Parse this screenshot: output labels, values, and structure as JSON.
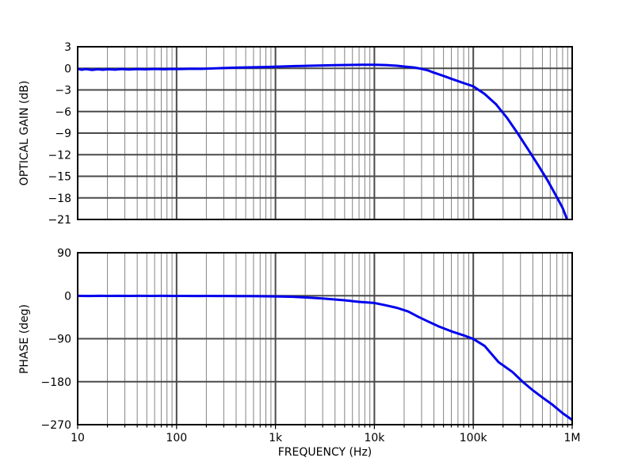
{
  "figure": {
    "background": "#ffffff"
  },
  "colors": {
    "curve": "#0000ee",
    "grid_major": "#4a4a4a",
    "grid_minor": "#848484",
    "frame": "#000000",
    "text": "#000000"
  },
  "chart_data": [
    {
      "type": "line",
      "name": "optical-gain",
      "ylabel": "OPTICAL GAIN (dB)",
      "xlabel": "",
      "xscale": "log",
      "xlim": [
        10,
        1000000
      ],
      "ylim": [
        -21,
        3
      ],
      "yticks": [
        3,
        0,
        -3,
        -6,
        -9,
        -12,
        -15,
        -18,
        -21
      ],
      "ytick_labels": [
        "3",
        "0",
        "−3",
        "−6",
        "−9",
        "−12",
        "−15",
        "−18",
        "−21"
      ],
      "xticks": [
        10,
        100,
        1000,
        10000,
        100000,
        1000000
      ],
      "xtick_labels": [],
      "grid": {
        "major": true,
        "minor_x": true,
        "legend": "none"
      },
      "series": [
        {
          "name": "optical-gain-response",
          "color": "#0000ee",
          "linewidth": 3,
          "points": [
            [
              10,
              -0.07
            ],
            [
              11,
              -0.2
            ],
            [
              12,
              -0.1
            ],
            [
              14,
              -0.22
            ],
            [
              16,
              -0.12
            ],
            [
              18,
              -0.2
            ],
            [
              20,
              -0.12
            ],
            [
              24,
              -0.18
            ],
            [
              28,
              -0.1
            ],
            [
              33,
              -0.16
            ],
            [
              40,
              -0.1
            ],
            [
              48,
              -0.14
            ],
            [
              60,
              -0.08
            ],
            [
              75,
              -0.12
            ],
            [
              90,
              -0.08
            ],
            [
              110,
              -0.1
            ],
            [
              140,
              -0.05
            ],
            [
              180,
              -0.07
            ],
            [
              230,
              -0.02
            ],
            [
              300,
              0.04
            ],
            [
              400,
              0.09
            ],
            [
              550,
              0.14
            ],
            [
              700,
              0.17
            ],
            [
              900,
              0.21
            ],
            [
              1200,
              0.26
            ],
            [
              1600,
              0.31
            ],
            [
              2200,
              0.36
            ],
            [
              3000,
              0.4
            ],
            [
              4000,
              0.44
            ],
            [
              5500,
              0.47
            ],
            [
              7500,
              0.5
            ],
            [
              10000,
              0.5
            ],
            [
              13000,
              0.46
            ],
            [
              17000,
              0.36
            ],
            [
              20000,
              0.25
            ],
            [
              25000,
              0.12
            ],
            [
              30000,
              -0.07
            ],
            [
              35000,
              -0.3
            ],
            [
              40000,
              -0.6
            ],
            [
              50000,
              -1.05
            ],
            [
              60000,
              -1.45
            ],
            [
              80000,
              -2.05
            ],
            [
              100000,
              -2.5
            ],
            [
              130000,
              -3.55
            ],
            [
              170000,
              -5.0
            ],
            [
              220000,
              -6.9
            ],
            [
              280000,
              -9.0
            ],
            [
              360000,
              -11.3
            ],
            [
              450000,
              -13.4
            ],
            [
              560000,
              -15.5
            ],
            [
              700000,
              -17.9
            ],
            [
              800000,
              -19.4
            ],
            [
              900000,
              -21.2
            ],
            [
              1000000,
              -23.2
            ]
          ]
        }
      ]
    },
    {
      "type": "line",
      "name": "phase",
      "ylabel": "PHASE (deg)",
      "xlabel": "FREQUENCY (Hz)",
      "xscale": "log",
      "xlim": [
        10,
        1000000
      ],
      "ylim": [
        -270,
        90
      ],
      "yticks": [
        90,
        0,
        -90,
        -180,
        -270
      ],
      "ytick_labels": [
        "90",
        "0",
        "−90",
        "−180",
        "−270"
      ],
      "xticks": [
        10,
        100,
        1000,
        10000,
        100000,
        1000000
      ],
      "xtick_labels": [
        "10",
        "100",
        "1k",
        "10k",
        "100k",
        "1M"
      ],
      "grid": {
        "major": true,
        "minor_x": true,
        "legend": "none"
      },
      "series": [
        {
          "name": "phase-response",
          "color": "#0000ee",
          "linewidth": 3,
          "points": [
            [
              10,
              -0.3
            ],
            [
              13,
              -0.6
            ],
            [
              16,
              -0.2
            ],
            [
              20,
              -0.5
            ],
            [
              26,
              -0.2
            ],
            [
              33,
              -0.5
            ],
            [
              42,
              -0.3
            ],
            [
              55,
              -0.5
            ],
            [
              70,
              -0.3
            ],
            [
              90,
              -0.5
            ],
            [
              120,
              -0.4
            ],
            [
              160,
              -0.6
            ],
            [
              200,
              -0.5
            ],
            [
              260,
              -0.7
            ],
            [
              330,
              -0.6
            ],
            [
              430,
              -0.8
            ],
            [
              550,
              -0.9
            ],
            [
              700,
              -1.1
            ],
            [
              1000,
              -1.4
            ],
            [
              1500,
              -2.3
            ],
            [
              2000,
              -3.6
            ],
            [
              3000,
              -5.8
            ],
            [
              4000,
              -7.8
            ],
            [
              5000,
              -9.6
            ],
            [
              7000,
              -12.8
            ],
            [
              10000,
              -15.2
            ],
            [
              13000,
              -20
            ],
            [
              17000,
              -25.5
            ],
            [
              22000,
              -33
            ],
            [
              28000,
              -44.5
            ],
            [
              35000,
              -54
            ],
            [
              45000,
              -64.5
            ],
            [
              60000,
              -74.5
            ],
            [
              80000,
              -83
            ],
            [
              100000,
              -90.5
            ],
            [
              130000,
              -105
            ],
            [
              180000,
              -139
            ],
            [
              250000,
              -160
            ],
            [
              315000,
              -180
            ],
            [
              400000,
              -198
            ],
            [
              500000,
              -213
            ],
            [
              630000,
              -228
            ],
            [
              800000,
              -246
            ],
            [
              1000000,
              -260
            ]
          ]
        }
      ]
    }
  ]
}
